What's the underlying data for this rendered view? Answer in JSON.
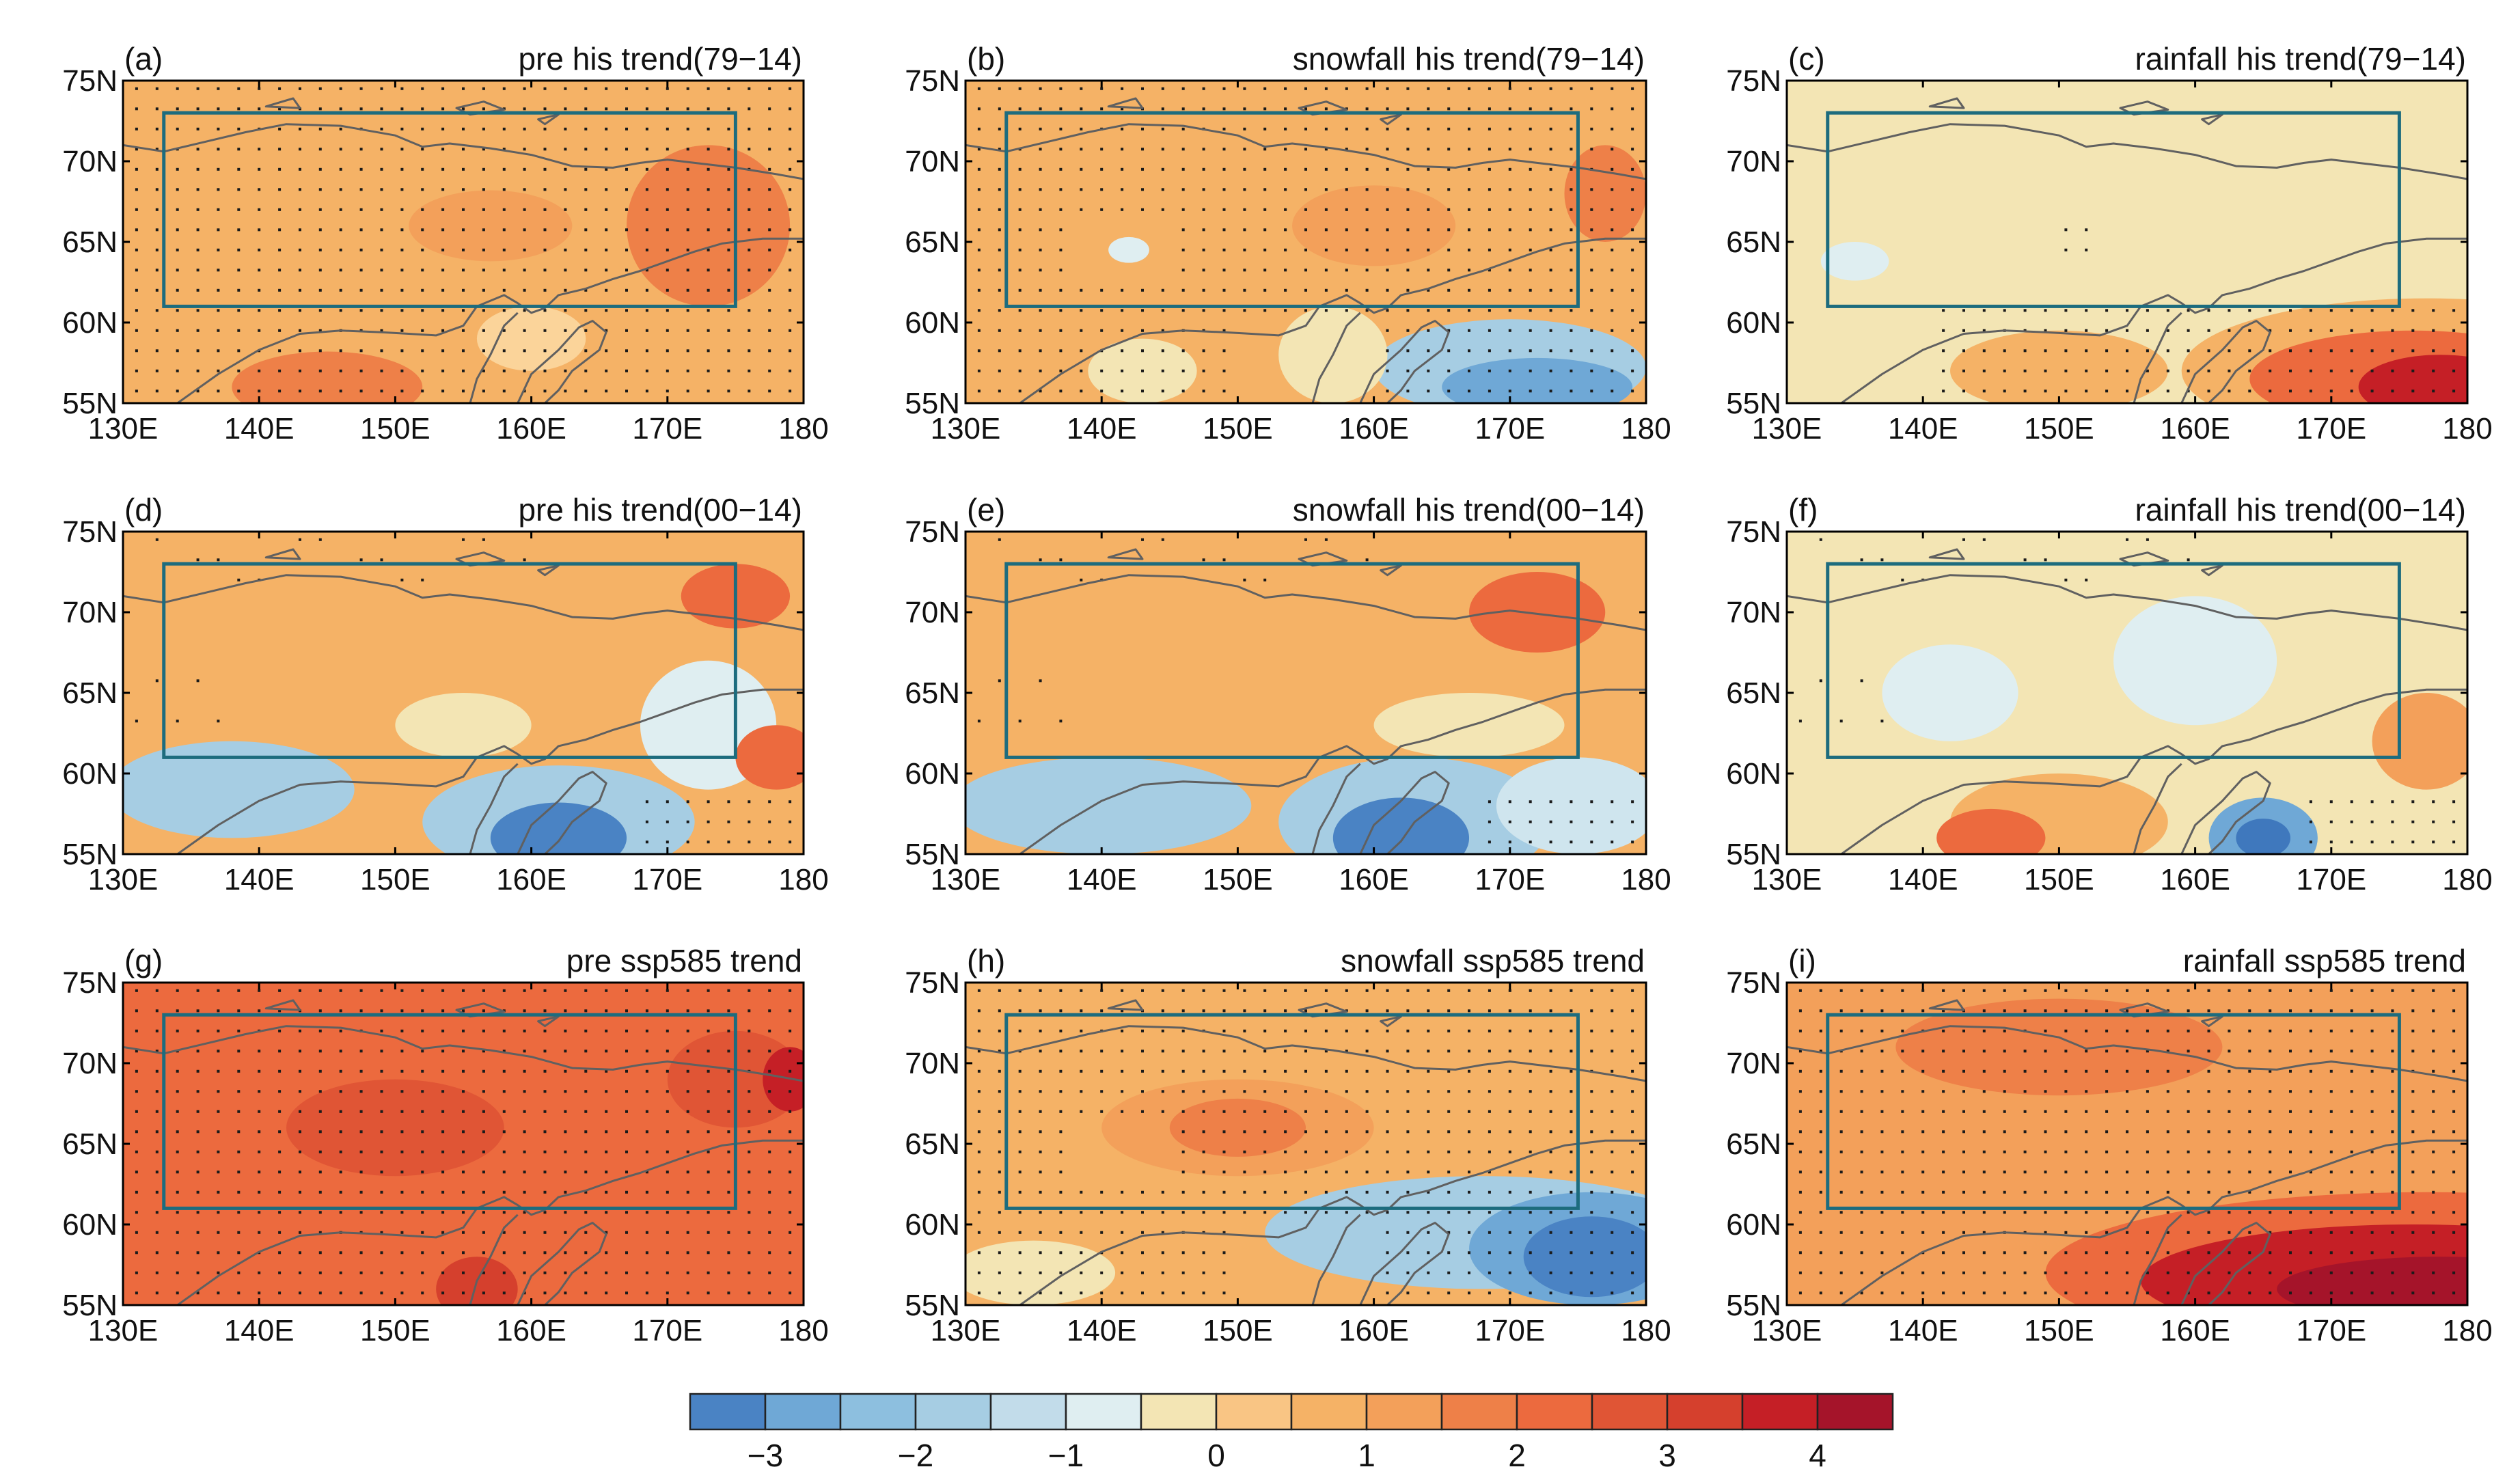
{
  "figure": {
    "panels": [
      {
        "label": "(a)",
        "title": "pre his trend(79−14)",
        "base": "#f5b266",
        "dotted": "all",
        "blobs": [
          {
            "lon": 145,
            "lat": 56,
            "rlon": 7,
            "rlat": 2.2,
            "color": "#ee8048"
          },
          {
            "lon": 173,
            "lat": 66,
            "rlon": 6,
            "rlat": 5,
            "color": "#ee8048"
          },
          {
            "lon": 157,
            "lat": 66,
            "rlon": 6,
            "rlat": 2.2,
            "color": "#f3a05a"
          },
          {
            "lon": 160,
            "lat": 59,
            "rlon": 4,
            "rlat": 2,
            "color": "#fbd49a"
          }
        ]
      },
      {
        "label": "(b)",
        "title": "snowfall his trend(79−14)",
        "base": "#f5b266",
        "dotted": "most",
        "blobs": [
          {
            "lon": 170,
            "lat": 57.2,
            "rlon": 10,
            "rlat": 3,
            "color": "#a6cde3"
          },
          {
            "lon": 172,
            "lat": 56,
            "rlon": 7,
            "rlat": 1.8,
            "color": "#6fa8d6"
          },
          {
            "lon": 157,
            "lat": 58,
            "rlon": 4,
            "rlat": 3,
            "color": "#f3e5b4"
          },
          {
            "lon": 143,
            "lat": 57,
            "rlon": 4,
            "rlat": 2,
            "color": "#f3e5b4"
          },
          {
            "lon": 142,
            "lat": 64.5,
            "rlon": 1.5,
            "rlat": 0.8,
            "color": "#dfeef1"
          },
          {
            "lon": 160,
            "lat": 66,
            "rlon": 6,
            "rlat": 2.5,
            "color": "#f3a05a"
          },
          {
            "lon": 177,
            "lat": 68,
            "rlon": 3,
            "rlat": 3,
            "color": "#ee8048"
          }
        ]
      },
      {
        "label": "(c)",
        "title": "rainfall his trend(79−14)",
        "base": "#f3e5b4",
        "dotted": "south",
        "blobs": [
          {
            "lon": 177,
            "lat": 57,
            "rlon": 18,
            "rlat": 4.5,
            "color": "#f5b266"
          },
          {
            "lon": 176,
            "lat": 56.5,
            "rlon": 12,
            "rlat": 3,
            "color": "#ec6a3e"
          },
          {
            "lon": 178,
            "lat": 56,
            "rlon": 6,
            "rlat": 2,
            "color": "#c51f26"
          },
          {
            "lon": 150,
            "lat": 57,
            "rlon": 8,
            "rlat": 2.5,
            "color": "#f5b266"
          },
          {
            "lon": 135,
            "lat": 63.8,
            "rlon": 2.5,
            "rlat": 1.2,
            "color": "#dfeef1"
          }
        ]
      },
      {
        "label": "(d)",
        "title": "pre his trend(00−14)",
        "base": "#f5b266",
        "dotted": "sparse",
        "blobs": [
          {
            "lon": 138,
            "lat": 59,
            "rlon": 9,
            "rlat": 3,
            "color": "#a6cde3"
          },
          {
            "lon": 162,
            "lat": 57,
            "rlon": 10,
            "rlat": 3.5,
            "color": "#a6cde3"
          },
          {
            "lon": 162,
            "lat": 56,
            "rlon": 5,
            "rlat": 2.2,
            "color": "#4a83c4"
          },
          {
            "lon": 173,
            "lat": 63,
            "rlon": 5,
            "rlat": 4,
            "color": "#dfeef1"
          },
          {
            "lon": 155,
            "lat": 63,
            "rlon": 5,
            "rlat": 2,
            "color": "#f3e5b4"
          },
          {
            "lon": 175,
            "lat": 71,
            "rlon": 4,
            "rlat": 2,
            "color": "#ec6a3e"
          },
          {
            "lon": 178,
            "lat": 61,
            "rlon": 3,
            "rlat": 2,
            "color": "#ec6a3e"
          }
        ]
      },
      {
        "label": "(e)",
        "title": "snowfall his trend(00−14)",
        "base": "#f5b266",
        "dotted": "sparse",
        "blobs": [
          {
            "lon": 140,
            "lat": 58,
            "rlon": 11,
            "rlat": 3,
            "color": "#a6cde3"
          },
          {
            "lon": 163,
            "lat": 57,
            "rlon": 10,
            "rlat": 4,
            "color": "#a6cde3"
          },
          {
            "lon": 162,
            "lat": 56,
            "rlon": 5,
            "rlat": 2.5,
            "color": "#4a83c4"
          },
          {
            "lon": 175,
            "lat": 58,
            "rlon": 6,
            "rlat": 3,
            "color": "#cfe5ee"
          },
          {
            "lon": 167,
            "lat": 63,
            "rlon": 7,
            "rlat": 2,
            "color": "#f3e5b4"
          },
          {
            "lon": 172,
            "lat": 70,
            "rlon": 5,
            "rlat": 2.5,
            "color": "#ec6a3e"
          }
        ]
      },
      {
        "label": "(f)",
        "title": "rainfall his trend(00−14)",
        "base": "#f3e5b4",
        "dotted": "sparse",
        "blobs": [
          {
            "lon": 142,
            "lat": 65,
            "rlon": 5,
            "rlat": 3,
            "color": "#dfeef1"
          },
          {
            "lon": 160,
            "lat": 67,
            "rlon": 6,
            "rlat": 4,
            "color": "#dfeef1"
          },
          {
            "lon": 165,
            "lat": 56,
            "rlon": 4,
            "rlat": 2.5,
            "color": "#6fa8d6"
          },
          {
            "lon": 165,
            "lat": 56,
            "rlon": 2,
            "rlat": 1.2,
            "color": "#3f78bd"
          },
          {
            "lon": 150,
            "lat": 57,
            "rlon": 8,
            "rlat": 3,
            "color": "#f5b266"
          },
          {
            "lon": 145,
            "lat": 56,
            "rlon": 4,
            "rlat": 1.8,
            "color": "#ec6a3e"
          },
          {
            "lon": 177,
            "lat": 62,
            "rlon": 4,
            "rlat": 3,
            "color": "#f3a05a"
          }
        ]
      },
      {
        "label": "(g)",
        "title": "pre ssp585 trend",
        "base": "#ec6a3e",
        "dotted": "all",
        "blobs": [
          {
            "lon": 150,
            "lat": 66,
            "rlon": 8,
            "rlat": 3,
            "color": "#e05535"
          },
          {
            "lon": 175,
            "lat": 69,
            "rlon": 5,
            "rlat": 3,
            "color": "#e05535"
          },
          {
            "lon": 179,
            "lat": 69,
            "rlon": 2,
            "rlat": 2,
            "color": "#c51f26"
          },
          {
            "lon": 156,
            "lat": 56,
            "rlon": 3,
            "rlat": 2,
            "color": "#d5402d"
          }
        ]
      },
      {
        "label": "(h)",
        "title": "snowfall ssp585 trend",
        "base": "#f5b266",
        "dotted": "most",
        "blobs": [
          {
            "lon": 168,
            "lat": 59.5,
            "rlon": 16,
            "rlat": 3.5,
            "color": "#a6cde3"
          },
          {
            "lon": 176,
            "lat": 58.5,
            "rlon": 9,
            "rlat": 3.5,
            "color": "#6fa8d6"
          },
          {
            "lon": 176,
            "lat": 58,
            "rlon": 5,
            "rlat": 2.5,
            "color": "#4a83c4"
          },
          {
            "lon": 150,
            "lat": 66,
            "rlon": 10,
            "rlat": 3,
            "color": "#f3a05a"
          },
          {
            "lon": 150,
            "lat": 66,
            "rlon": 5,
            "rlat": 1.8,
            "color": "#ee8048"
          },
          {
            "lon": 135,
            "lat": 57,
            "rlon": 6,
            "rlat": 2,
            "color": "#f3e5b4"
          }
        ]
      },
      {
        "label": "(i)",
        "title": "rainfall ssp585 trend",
        "base": "#f3a05a",
        "dotted": "all",
        "blobs": [
          {
            "lon": 177,
            "lat": 57,
            "rlon": 28,
            "rlat": 5,
            "color": "#ec6a3e"
          },
          {
            "lon": 176,
            "lat": 56.5,
            "rlon": 20,
            "rlat": 3.5,
            "color": "#c51f26"
          },
          {
            "lon": 178,
            "lat": 56,
            "rlon": 12,
            "rlat": 2,
            "color": "#a5142a"
          },
          {
            "lon": 150,
            "lat": 71,
            "rlon": 12,
            "rlat": 3,
            "color": "#ee8048"
          }
        ]
      }
    ],
    "axes": {
      "lon_ticks": [
        "130E",
        "140E",
        "150E",
        "160E",
        "170E",
        "180"
      ],
      "lat_ticks": [
        "55N",
        "60N",
        "65N",
        "70N",
        "75N"
      ],
      "lon_range": [
        130,
        180
      ],
      "lat_range": [
        55,
        75
      ],
      "box": {
        "lon": [
          133,
          175
        ],
        "lat": [
          61,
          73
        ]
      }
    },
    "colorbar": {
      "colors": [
        "#4a83c4",
        "#6fa8d6",
        "#8dbfdf",
        "#a6cde3",
        "#c2dcea",
        "#dfeef1",
        "#f3e5b4",
        "#f9c584",
        "#f5b266",
        "#f3a05a",
        "#ee8048",
        "#ec6a3e",
        "#e05535",
        "#d5402d",
        "#c51f26",
        "#a5142a"
      ],
      "tick_labels": [
        "−3",
        "−2",
        "−1",
        "0",
        "1",
        "2",
        "3",
        "4"
      ]
    }
  }
}
